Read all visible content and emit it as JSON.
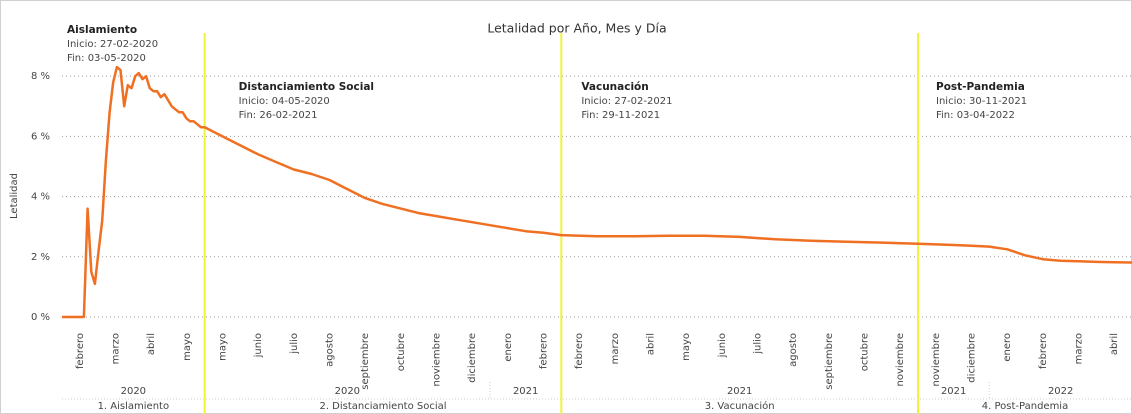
{
  "chart_data": {
    "type": "line",
    "title": "Letalidad por Año, Mes y Día",
    "y_label": "Letalidad",
    "color": "#f07023",
    "divider_color": "#f2f23a",
    "grid": true,
    "ylim": [
      0,
      9.5
    ],
    "yticks": [
      {
        "value": 0,
        "label": "0 %"
      },
      {
        "value": 2,
        "label": "2 %"
      },
      {
        "value": 4,
        "label": "4 %"
      },
      {
        "value": 6,
        "label": "6 %"
      },
      {
        "value": 8,
        "label": "8 %"
      }
    ],
    "phases": [
      {
        "label": "1. Aislamiento",
        "annotation": {
          "title": "Aislamiento",
          "start": "Inicio:  27-02-2020",
          "end": "Fin: 03-05-2020"
        },
        "years": [
          {
            "label": "2020",
            "months": [
              "febrero",
              "marzo",
              "abril",
              "mayo"
            ]
          }
        ],
        "values": [
          0,
          0,
          0,
          0,
          0,
          0,
          0,
          3.6,
          1.5,
          1.1,
          2.2,
          3.2,
          5.2,
          6.8,
          7.8,
          8.3,
          8.2,
          7.0,
          7.7,
          7.6,
          8.0,
          8.1,
          7.9,
          8.0,
          7.6,
          7.5,
          7.5,
          7.3,
          7.4,
          7.2,
          7.0,
          6.9,
          6.8,
          6.8,
          6.6,
          6.5,
          6.5,
          6.4,
          6.3,
          6.3
        ]
      },
      {
        "label": "2. Distanciamiento Social",
        "annotation": {
          "title": "Distanciamiento Social",
          "start": "Inicio:  04-05-2020",
          "end": "Fin: 26-02-2021"
        },
        "years": [
          {
            "label": "2020",
            "months": [
              "mayo",
              "junio",
              "julio",
              "agosto",
              "septiembre",
              "octubre",
              "noviembre",
              "diciembre"
            ]
          },
          {
            "label": "2021",
            "months": [
              "enero",
              "febrero"
            ]
          }
        ],
        "values": [
          6.3,
          6.0,
          5.7,
          5.4,
          5.15,
          4.9,
          4.75,
          4.55,
          4.25,
          3.95,
          3.75,
          3.6,
          3.45,
          3.35,
          3.25,
          3.15,
          3.05,
          2.95,
          2.85,
          2.8,
          2.72
        ]
      },
      {
        "label": "3. Vacunación",
        "annotation": {
          "title": "Vacunación",
          "start": "Inicio:  27-02-2021",
          "end": "Fin: 29-11-2021"
        },
        "years": [
          {
            "label": "2021",
            "months": [
              "febrero",
              "marzo",
              "abril",
              "mayo",
              "junio",
              "julio",
              "agosto",
              "septiembre",
              "octubre",
              "noviembre"
            ]
          }
        ],
        "values": [
          2.72,
          2.68,
          2.68,
          2.7,
          2.7,
          2.66,
          2.58,
          2.53,
          2.5,
          2.47,
          2.43
        ]
      },
      {
        "label": "4. Post-Pandemia",
        "annotation": {
          "title": "Post-Pandemia",
          "start": "Inicio:  30-11-2021",
          "end": "Fin: 03-04-2022"
        },
        "years": [
          {
            "label": "2021",
            "months": [
              "noviembre",
              "diciembre"
            ]
          },
          {
            "label": "2022",
            "months": [
              "enero",
              "febrero",
              "marzo",
              "abril"
            ]
          }
        ],
        "values": [
          2.43,
          2.41,
          2.39,
          2.37,
          2.34,
          2.25,
          2.05,
          1.92,
          1.87,
          1.85,
          1.83,
          1.82,
          1.81
        ]
      }
    ]
  }
}
